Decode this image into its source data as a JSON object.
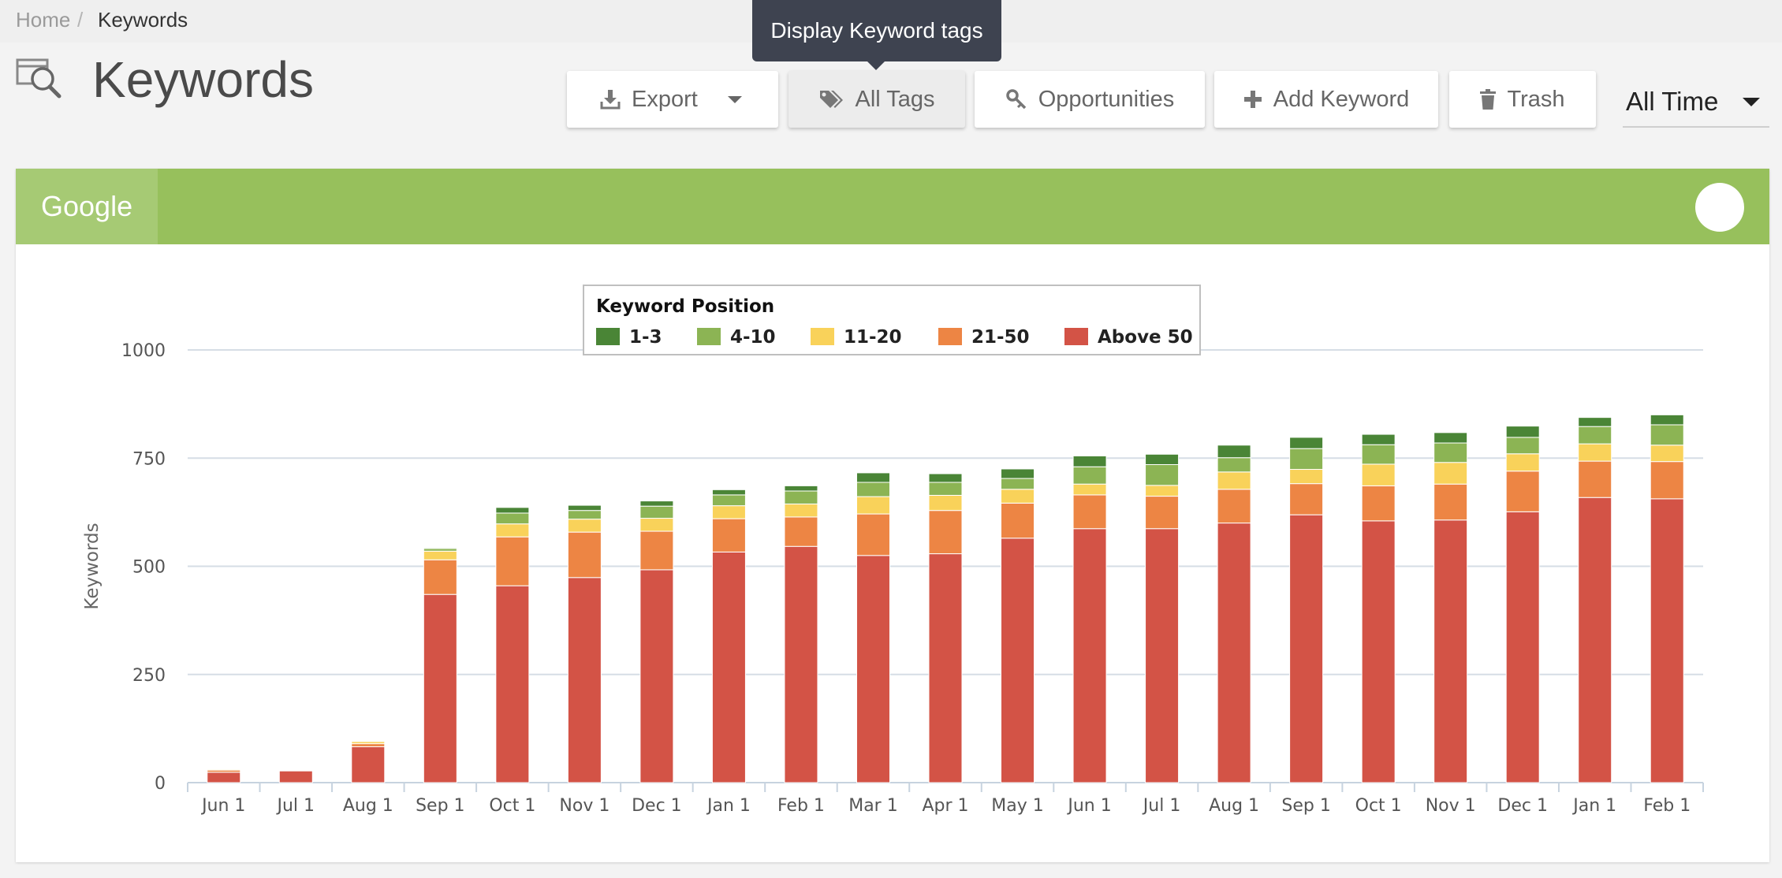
{
  "breadcrumb": {
    "home": "Home",
    "separator": "/",
    "current": "Keywords"
  },
  "page": {
    "title": "Keywords"
  },
  "toolbar": {
    "export_label": "Export",
    "tags_label": "All Tags",
    "opportunities_label": "Opportunities",
    "add_keyword_label": "Add Keyword",
    "trash_label": "Trash"
  },
  "tooltip": {
    "text": "Display Keyword tags"
  },
  "time_filter": {
    "value": "All Time"
  },
  "panel": {
    "tab_label": "Google"
  },
  "colors": {
    "header_green": "#97c05c",
    "tab_green": "#a6ca74",
    "pos_1_3": "#4a8536",
    "pos_4_10": "#8cb454",
    "pos_11_20": "#f9d25a",
    "pos_21_50": "#ed8544",
    "pos_above_50": "#d35346"
  },
  "chart_data": {
    "type": "bar",
    "stacked": true,
    "title": "",
    "legend_title": "Keyword Position",
    "legend_position": "top-center",
    "xlabel": "",
    "ylabel": "Keywords",
    "ylim": [
      0,
      1000
    ],
    "yticks": [
      0,
      250,
      500,
      750,
      1000
    ],
    "grid": true,
    "categories": [
      "Jun 1",
      "Jul 1",
      "Aug 1",
      "Sep 1",
      "Oct 1",
      "Nov 1",
      "Dec 1",
      "Jan 1",
      "Feb 1",
      "Mar 1",
      "Apr 1",
      "May 1",
      "Jun 1",
      "Jul 1",
      "Aug 1",
      "Sep 1",
      "Oct 1",
      "Nov 1",
      "Dec 1",
      "Jan 1",
      "Feb 1"
    ],
    "series": [
      {
        "name": "Above 50",
        "color": "#d35346",
        "values": [
          24,
          27,
          83,
          435,
          455,
          474,
          492,
          533,
          546,
          525,
          529,
          565,
          587,
          587,
          600,
          619,
          605,
          607,
          626,
          659,
          656
        ]
      },
      {
        "name": "21-50",
        "color": "#ed8544",
        "values": [
          5,
          0,
          7,
          80,
          113,
          105,
          89,
          77,
          68,
          96,
          100,
          81,
          78,
          75,
          78,
          72,
          81,
          83,
          94,
          84,
          86
        ]
      },
      {
        "name": "11-20",
        "color": "#f9d25a",
        "values": [
          2,
          0,
          5,
          20,
          30,
          30,
          30,
          30,
          30,
          40,
          35,
          32,
          25,
          25,
          40,
          33,
          50,
          50,
          40,
          40,
          38
        ]
      },
      {
        "name": "4-10",
        "color": "#8cb454",
        "values": [
          1,
          0,
          2,
          6,
          25,
          20,
          28,
          25,
          30,
          33,
          30,
          25,
          40,
          48,
          33,
          48,
          45,
          45,
          38,
          40,
          47
        ]
      },
      {
        "name": "1-3",
        "color": "#4a8536",
        "values": [
          0,
          0,
          1,
          2,
          13,
          12,
          12,
          12,
          12,
          22,
          20,
          22,
          25,
          24,
          29,
          26,
          24,
          24,
          26,
          21,
          23
        ]
      }
    ],
    "legend_order": [
      "1-3",
      "4-10",
      "11-20",
      "21-50",
      "Above 50"
    ]
  }
}
